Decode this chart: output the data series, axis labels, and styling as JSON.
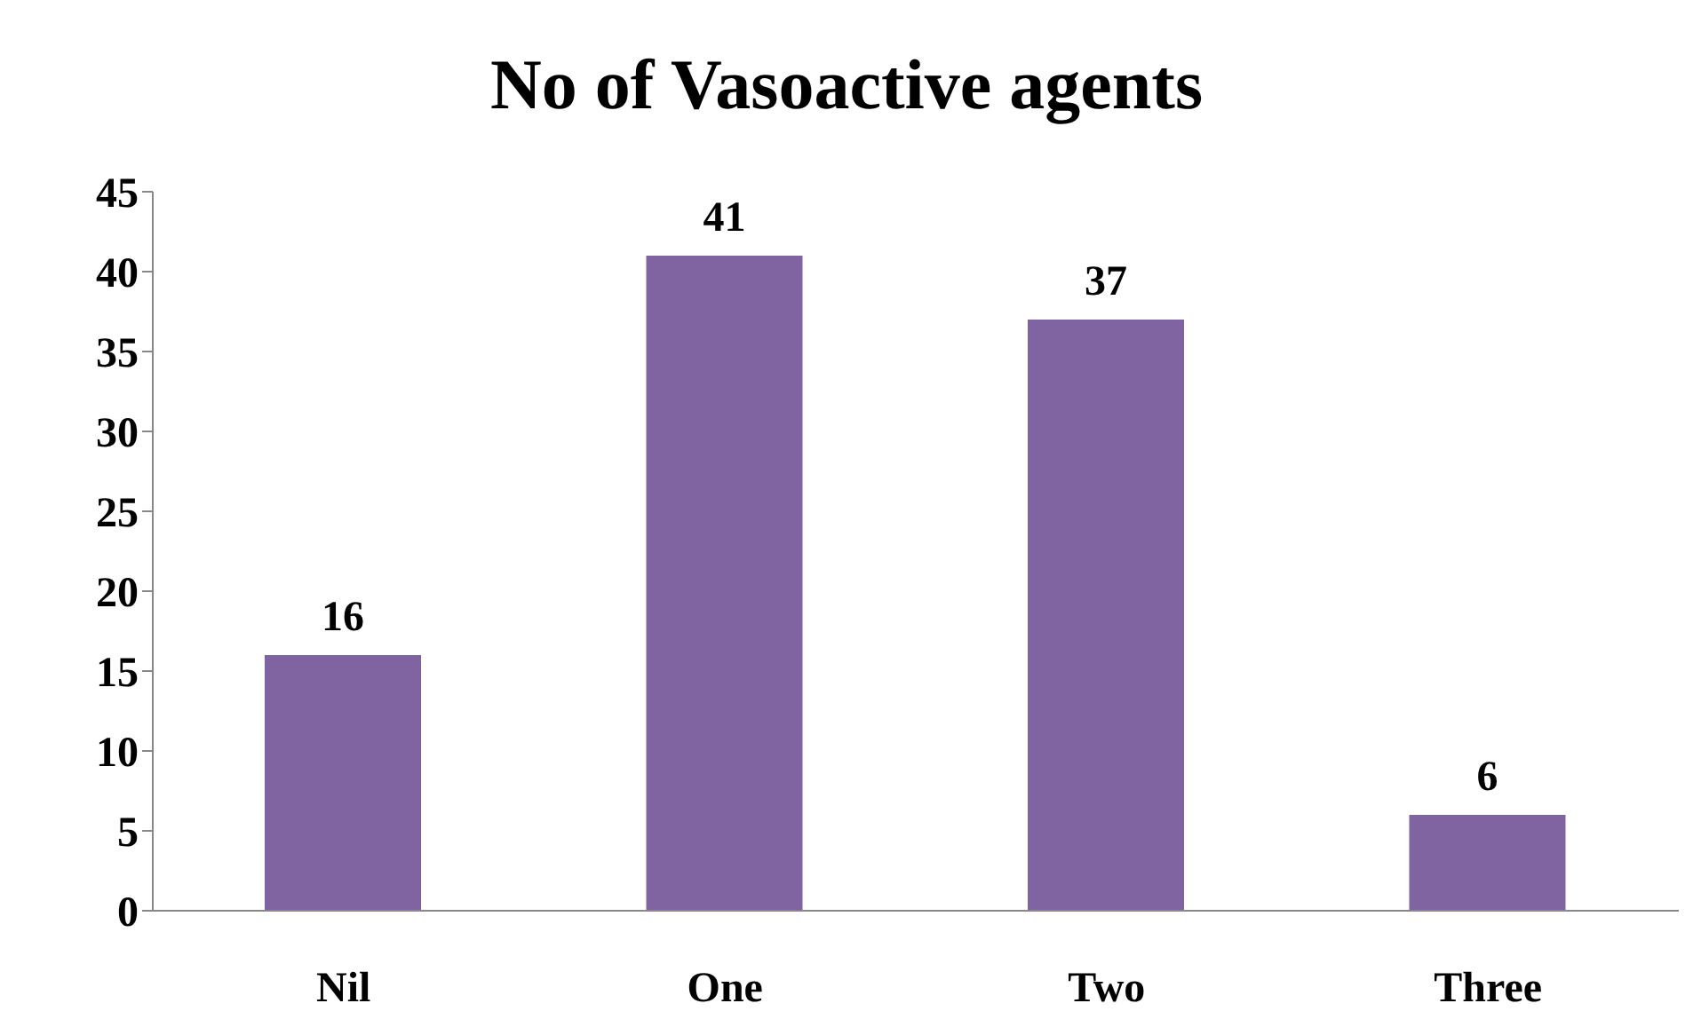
{
  "chart_data": {
    "type": "bar",
    "title": "No of Vasoactive agents",
    "categories": [
      "Nil",
      "One",
      "Two",
      "Three"
    ],
    "values": [
      16,
      41,
      37,
      6
    ],
    "color": "#8064a2",
    "ylim": [
      0,
      45
    ],
    "yticks": [
      0,
      5,
      10,
      15,
      20,
      25,
      30,
      35,
      40,
      45
    ],
    "grid": false,
    "data_labels": true
  }
}
